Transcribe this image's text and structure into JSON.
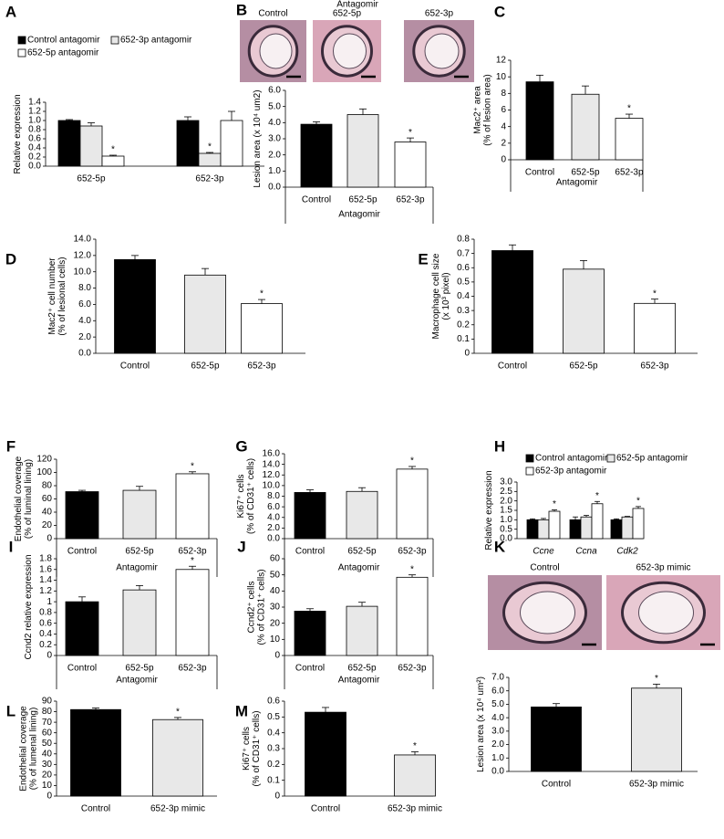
{
  "chart_data": [
    {
      "panel": "A",
      "type": "bar",
      "ylabel": "Relative expression",
      "categories": [
        "652-5p",
        "652-3p"
      ],
      "series": [
        {
          "name": "Control antagomir",
          "color": "#000000",
          "values": [
            1.0,
            1.0
          ],
          "errors": [
            0.02,
            0.08
          ],
          "stars": [
            null,
            null
          ]
        },
        {
          "name": "652-3p antagomir",
          "color": "#e8e8e8",
          "values": [
            0.88,
            0.28
          ],
          "errors": [
            0.07,
            0.02
          ],
          "stars": [
            null,
            "*"
          ]
        },
        {
          "name": "652-5p antagomir",
          "color": "#ffffff",
          "values": [
            0.22,
            1.0
          ],
          "errors": [
            0.02,
            0.2
          ],
          "stars": [
            "*",
            null
          ]
        }
      ],
      "ylim": [
        0,
        1.4
      ],
      "yticks": [
        {
          "value": 0,
          "label": "0.0"
        },
        0.2,
        0.4,
        0.6,
        0.8,
        {
          "value": 1,
          "label": "1.0"
        },
        1.2,
        1.4
      ]
    },
    {
      "panel": "B",
      "type": "bar",
      "image_title": "Antagomir",
      "image_labels": [
        "Control",
        "652-5p",
        "652-3p"
      ],
      "ylabel": "Lesion area (x 10⁴ um2)",
      "xlabel": "Antagomir",
      "categories": [
        "Control",
        "652-5p",
        "652-3p"
      ],
      "values": [
        3.9,
        4.5,
        2.8
      ],
      "errors": [
        0.15,
        0.35,
        0.25
      ],
      "stars": [
        null,
        null,
        "*"
      ],
      "colors": [
        "#000000",
        "#e8e8e8",
        "#ffffff"
      ],
      "ylim": [
        0,
        6
      ],
      "yticks": [
        {
          "value": 0,
          "label": "0.0"
        },
        {
          "value": 1,
          "label": "1.0"
        },
        {
          "value": 2,
          "label": "2.0"
        },
        {
          "value": 3,
          "label": "3.0"
        },
        {
          "value": 4,
          "label": "4.0"
        },
        {
          "value": 5,
          "label": "5.0"
        },
        {
          "value": 6,
          "label": "6.0"
        }
      ]
    },
    {
      "panel": "C",
      "type": "bar",
      "ylabel": [
        "Mac2⁺ area",
        "(% of lesion area)"
      ],
      "xlabel": "Antagomir",
      "categories": [
        "Control",
        "652-5p",
        "652-3p"
      ],
      "values": [
        9.4,
        7.9,
        5.0
      ],
      "errors": [
        0.8,
        1.0,
        0.5
      ],
      "stars": [
        null,
        null,
        "*"
      ],
      "colors": [
        "#000000",
        "#e8e8e8",
        "#ffffff"
      ],
      "ylim": [
        0,
        12
      ],
      "yticks": [
        0,
        2,
        4,
        6,
        8,
        10,
        12
      ]
    },
    {
      "panel": "D",
      "type": "bar",
      "ylabel": [
        "Mac2⁺ cell number",
        "(% of lesional cells)"
      ],
      "categories": [
        "Control",
        "652-5p",
        "652-3p"
      ],
      "values": [
        11.5,
        9.6,
        6.1
      ],
      "errors": [
        0.5,
        0.8,
        0.5
      ],
      "stars": [
        null,
        null,
        "*"
      ],
      "colors": [
        "#000000",
        "#e8e8e8",
        "#ffffff"
      ],
      "ylim": [
        0,
        14
      ],
      "yticks": [
        {
          "value": 0,
          "label": "0.0"
        },
        {
          "value": 2,
          "label": "2.0"
        },
        {
          "value": 4,
          "label": "4.0"
        },
        {
          "value": 6,
          "label": "6.0"
        },
        {
          "value": 8,
          "label": "8.0"
        },
        {
          "value": 10,
          "label": "10.0"
        },
        {
          "value": 12,
          "label": "12.0"
        },
        {
          "value": 14,
          "label": "14.0"
        }
      ]
    },
    {
      "panel": "E",
      "type": "bar",
      "ylabel": [
        "Macrophage cell size",
        "(x 10³ pixel)"
      ],
      "categories": [
        "Control",
        "652-5p",
        "652-3p"
      ],
      "values": [
        0.72,
        0.59,
        0.35
      ],
      "errors": [
        0.04,
        0.06,
        0.03
      ],
      "stars": [
        null,
        null,
        "*"
      ],
      "colors": [
        "#000000",
        "#e8e8e8",
        "#ffffff"
      ],
      "ylim": [
        0,
        0.8
      ],
      "yticks": [
        0,
        0.1,
        0.2,
        0.3,
        0.4,
        0.5,
        0.6,
        0.7,
        0.8
      ]
    },
    {
      "panel": "F",
      "type": "bar",
      "ylabel": [
        "Endothelial coverage",
        "(% of luminal lining)"
      ],
      "xlabel": "Antagomir",
      "categories": [
        "Control",
        "652-5p",
        "652-3p"
      ],
      "values": [
        71,
        73,
        98
      ],
      "errors": [
        2,
        6,
        3
      ],
      "stars": [
        null,
        null,
        "*"
      ],
      "colors": [
        "#000000",
        "#e8e8e8",
        "#ffffff"
      ],
      "ylim": [
        0,
        120
      ],
      "yticks": [
        0,
        20,
        40,
        60,
        80,
        100,
        120
      ]
    },
    {
      "panel": "G",
      "type": "bar",
      "ylabel": [
        "Ki67⁺ cells",
        "(% of CD31⁺ cells)"
      ],
      "xlabel": "Antagomir",
      "categories": [
        "Control",
        "652-5p",
        "652-3p"
      ],
      "values": [
        8.7,
        8.9,
        13.1
      ],
      "errors": [
        0.5,
        0.7,
        0.5
      ],
      "stars": [
        null,
        null,
        "*"
      ],
      "colors": [
        "#000000",
        "#e8e8e8",
        "#ffffff"
      ],
      "ylim": [
        0,
        16
      ],
      "yticks": [
        {
          "value": 0,
          "label": "0.0"
        },
        {
          "value": 2,
          "label": "2.0"
        },
        {
          "value": 4,
          "label": "4.0"
        },
        {
          "value": 6,
          "label": "6.0"
        },
        {
          "value": 8,
          "label": "8.0"
        },
        {
          "value": 10,
          "label": "10.0"
        },
        {
          "value": 12,
          "label": "12.0"
        },
        {
          "value": 14,
          "label": "14.0"
        },
        {
          "value": 16,
          "label": "16.0"
        }
      ]
    },
    {
      "panel": "H",
      "type": "bar",
      "ylabel": "Relative expression",
      "categories": [
        "Ccne",
        "Ccna",
        "Cdk2"
      ],
      "italic_categories": true,
      "series": [
        {
          "name": "Control antagomir",
          "color": "#000000",
          "values": [
            1.0,
            1.0,
            1.0
          ],
          "errors": [
            0.05,
            0.15,
            0.05
          ],
          "stars": [
            null,
            null,
            null
          ]
        },
        {
          "name": "652-5p antagomir",
          "color": "#e8e8e8",
          "values": [
            1.0,
            1.15,
            1.15
          ],
          "errors": [
            0.07,
            0.08,
            0.03
          ],
          "stars": [
            null,
            null,
            null
          ]
        },
        {
          "name": "652-3p antagomir",
          "color": "#ffffff",
          "values": [
            1.45,
            1.85,
            1.6
          ],
          "errors": [
            0.07,
            0.12,
            0.1
          ],
          "stars": [
            "*",
            "*",
            "*"
          ]
        }
      ],
      "ylim": [
        0,
        3
      ],
      "yticks": [
        {
          "value": 0,
          "label": "0.0"
        },
        0.5,
        {
          "value": 1,
          "label": "1.0"
        },
        1.5,
        {
          "value": 2,
          "label": "2.0"
        },
        2.5,
        {
          "value": 3,
          "label": "3.0"
        }
      ]
    },
    {
      "panel": "I",
      "type": "bar",
      "ylabel": "Ccnd2 relative expression",
      "xlabel": "Antagomir",
      "categories": [
        "Control",
        "652-5p",
        "652-3p"
      ],
      "values": [
        1.0,
        1.22,
        1.6
      ],
      "errors": [
        0.09,
        0.08,
        0.06
      ],
      "stars": [
        null,
        null,
        "*"
      ],
      "colors": [
        "#000000",
        "#e8e8e8",
        "#ffffff"
      ],
      "ylim": [
        0,
        1.8
      ],
      "yticks": [
        0,
        0.2,
        0.4,
        0.6,
        0.8,
        1,
        1.2,
        1.4,
        1.6,
        1.8
      ]
    },
    {
      "panel": "J",
      "type": "bar",
      "ylabel": [
        "Ccnd2⁺ cells",
        "(% of CD31⁺ cells)"
      ],
      "xlabel": "Antagomir",
      "categories": [
        "Control",
        "652-5p",
        "652-3p"
      ],
      "values": [
        27.5,
        30.5,
        48.5
      ],
      "errors": [
        1.5,
        2.5,
        1.5
      ],
      "stars": [
        null,
        null,
        "*"
      ],
      "colors": [
        "#000000",
        "#e8e8e8",
        "#ffffff"
      ],
      "ylim": [
        0,
        60
      ],
      "yticks": [
        0,
        10,
        20,
        30,
        40,
        50,
        60
      ]
    },
    {
      "panel": "K",
      "type": "bar",
      "image_labels": [
        "Control",
        "652-3p mimic"
      ],
      "ylabel": "Lesion area (x 10⁴ um²)",
      "categories": [
        "Control",
        "652-3p mimic"
      ],
      "values": [
        4.8,
        6.2
      ],
      "errors": [
        0.25,
        0.3
      ],
      "stars": [
        null,
        "*"
      ],
      "colors": [
        "#000000",
        "#e8e8e8"
      ],
      "ylim": [
        0,
        7
      ],
      "yticks": [
        {
          "value": 0,
          "label": "0.0"
        },
        {
          "value": 1,
          "label": "1.0"
        },
        {
          "value": 2,
          "label": "2.0"
        },
        {
          "value": 3,
          "label": "3.0"
        },
        {
          "value": 4,
          "label": "4.0"
        },
        {
          "value": 5,
          "label": "5.0"
        },
        {
          "value": 6,
          "label": "6.0"
        },
        {
          "value": 7,
          "label": "7.0"
        }
      ]
    },
    {
      "panel": "L",
      "type": "bar",
      "ylabel": [
        "Endothelial coverage",
        "(% of lumenal lining)"
      ],
      "categories": [
        "Control",
        "652-3p mimic"
      ],
      "values": [
        82,
        72.5
      ],
      "errors": [
        1.5,
        2
      ],
      "stars": [
        null,
        "*"
      ],
      "colors": [
        "#000000",
        "#e8e8e8"
      ],
      "ylim": [
        0,
        90
      ],
      "yticks": [
        0,
        10,
        20,
        30,
        40,
        50,
        60,
        70,
        80,
        90
      ]
    },
    {
      "panel": "M",
      "type": "bar",
      "ylabel": [
        "Ki67⁺ cells",
        "(% of CD31⁺ cells)"
      ],
      "categories": [
        "Control",
        "652-3p mimic"
      ],
      "values": [
        0.53,
        0.26
      ],
      "errors": [
        0.03,
        0.02
      ],
      "stars": [
        null,
        "*"
      ],
      "colors": [
        "#000000",
        "#e8e8e8"
      ],
      "ylim": [
        0,
        0.6
      ],
      "yticks": [
        0,
        0.1,
        0.2,
        0.3,
        0.4,
        0.5,
        0.6
      ]
    }
  ]
}
